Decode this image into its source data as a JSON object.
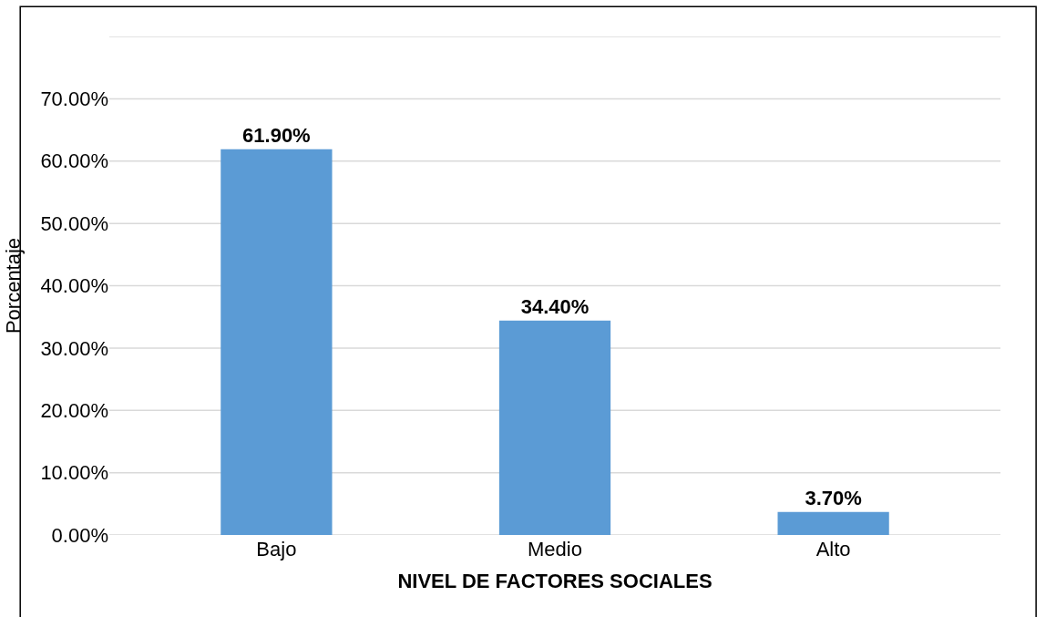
{
  "chart_data": {
    "type": "bar",
    "xlabel": "NIVEL DE FACTORES SOCIALES",
    "ylabel": "Porcentaje",
    "categories": [
      "Bajo",
      "Medio",
      "Alto"
    ],
    "values": [
      61.9,
      34.4,
      3.7
    ],
    "value_labels": [
      "61.90%",
      "34.40%",
      "3.70%"
    ],
    "color": "#5b9bd5",
    "ylim": [
      0,
      80
    ],
    "yticks": [
      {
        "value": 0,
        "label": "0.00%"
      },
      {
        "value": 10,
        "label": "10.00%"
      },
      {
        "value": 20,
        "label": "20.00%"
      },
      {
        "value": 30,
        "label": "30.00%"
      },
      {
        "value": 40,
        "label": "40.00%"
      },
      {
        "value": 50,
        "label": "50.00%"
      },
      {
        "value": 60,
        "label": "60.00%"
      },
      {
        "value": 70,
        "label": "70.00%"
      },
      {
        "value": 80,
        "label": null
      }
    ],
    "grid": "y"
  }
}
